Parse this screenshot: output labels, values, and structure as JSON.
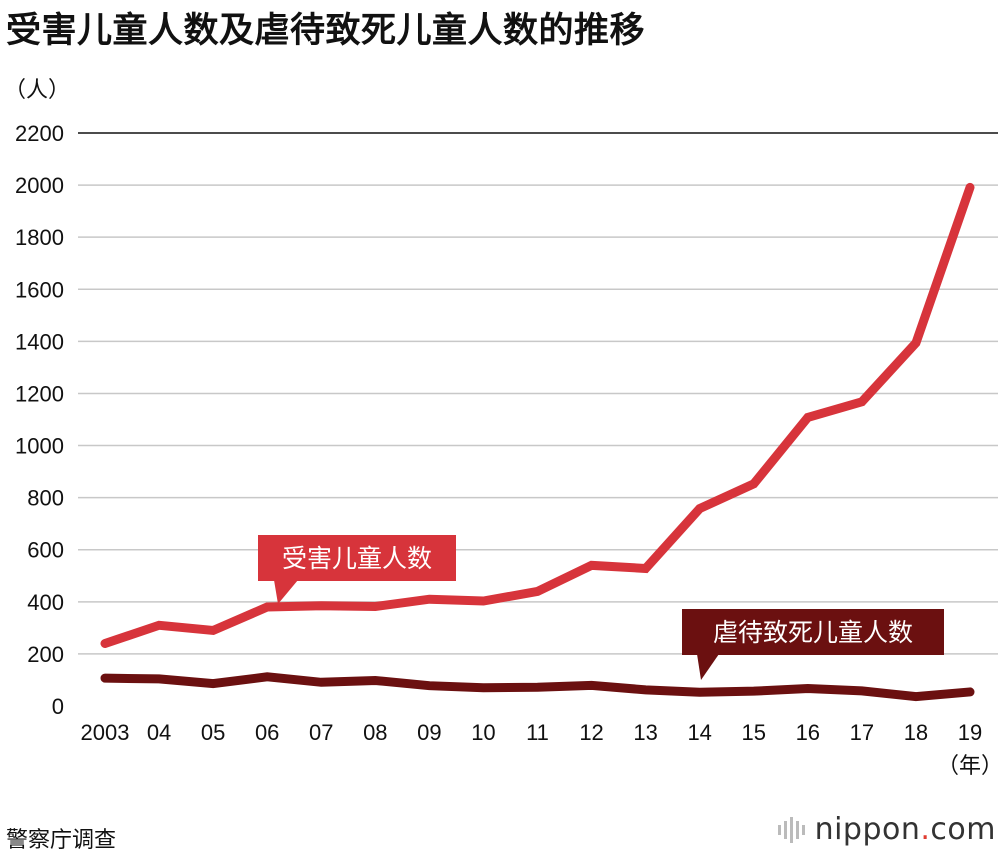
{
  "chart_data": {
    "type": "line",
    "title": "受害儿童人数及虐待致死儿童人数的推移",
    "ylabel": "（人）",
    "xlabel": "（年）",
    "x": [
      "2003",
      "04",
      "05",
      "06",
      "07",
      "08",
      "09",
      "10",
      "11",
      "12",
      "13",
      "14",
      "15",
      "16",
      "17",
      "18",
      "19"
    ],
    "ylim": [
      0,
      2200
    ],
    "yticks": [
      0,
      200,
      400,
      600,
      800,
      1000,
      1200,
      1400,
      1600,
      1800,
      2000,
      2200
    ],
    "grid": true,
    "series": [
      {
        "name": "受害儿童人数",
        "color": "#d7343b",
        "values": [
          240,
          310,
          290,
          380,
          385,
          382,
          410,
          403,
          440,
          540,
          528,
          758,
          853,
          1108,
          1168,
          1394,
          1991
        ]
      },
      {
        "name": "虐待致死儿童人数",
        "color": "#6b1010",
        "values": [
          107,
          104,
          86,
          112,
          91,
          98,
          78,
          70,
          72,
          79,
          62,
          53,
          57,
          67,
          58,
          36,
          54
        ]
      }
    ]
  },
  "source": "警察庁调查",
  "brand": {
    "name": "nippon",
    "dot": ".",
    "tld": "com"
  }
}
